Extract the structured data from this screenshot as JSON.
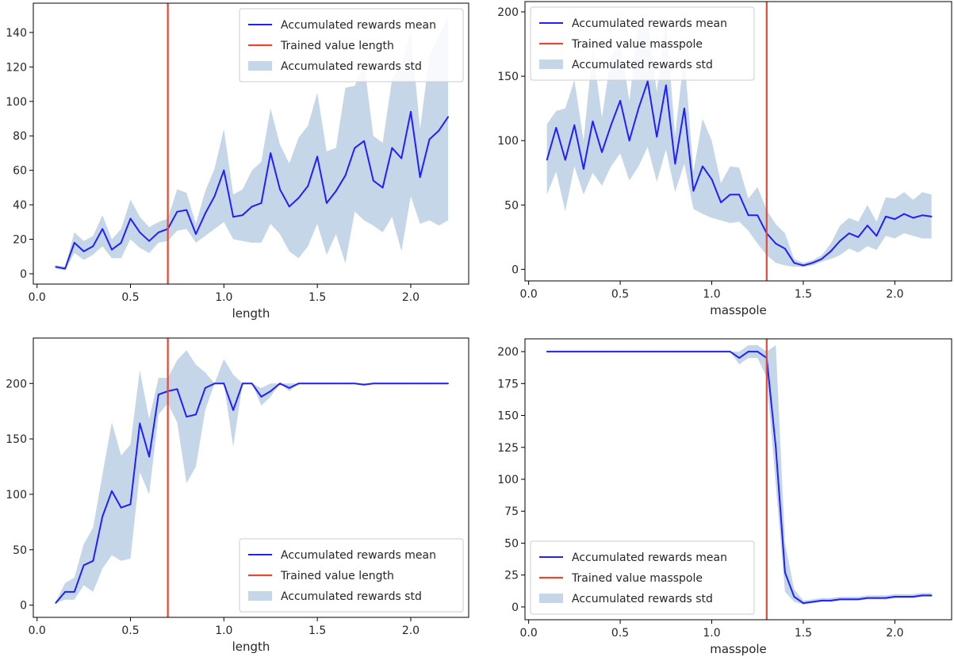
{
  "chart_data": [
    {
      "type": "line",
      "xlabel": "length",
      "ylabel": "",
      "xlim": [
        -0.02,
        2.31
      ],
      "ylim": [
        -6,
        157
      ],
      "xticks": [
        0.0,
        0.5,
        1.0,
        1.5,
        2.0
      ],
      "xtick_labels": [
        "0.0",
        "0.5",
        "1.0",
        "1.5",
        "2.0"
      ],
      "yticks": [
        0,
        20,
        40,
        60,
        80,
        100,
        120,
        140
      ],
      "ytick_labels": [
        "0",
        "20",
        "40",
        "60",
        "80",
        "100",
        "120",
        "140"
      ],
      "x": [
        0.1,
        0.15,
        0.2,
        0.25,
        0.3,
        0.35,
        0.4,
        0.45,
        0.5,
        0.55,
        0.6,
        0.65,
        0.7,
        0.75,
        0.8,
        0.85,
        0.9,
        0.95,
        1.0,
        1.05,
        1.1,
        1.15,
        1.2,
        1.25,
        1.3,
        1.35,
        1.4,
        1.45,
        1.5,
        1.55,
        1.6,
        1.65,
        1.7,
        1.75,
        1.8,
        1.85,
        1.9,
        1.95,
        2.0,
        2.05,
        2.1,
        2.15,
        2.2
      ],
      "series": [
        {
          "name": "Accumulated rewards mean",
          "color": "#1f1fff",
          "values": [
            4,
            3,
            18,
            13,
            16,
            26,
            14,
            18,
            32,
            24,
            19,
            24,
            26,
            36,
            37,
            23,
            35,
            45,
            60,
            33,
            34,
            39,
            41,
            70,
            49,
            39,
            44,
            51,
            68,
            41,
            48,
            57,
            73,
            77,
            54,
            50,
            73,
            67,
            94,
            56,
            78,
            83,
            91
          ]
        },
        {
          "name": "Accumulated rewards std",
          "color": "#c6d6e9",
          "kind": "band",
          "lower": [
            3,
            2,
            12,
            8,
            11,
            16,
            9,
            9,
            20,
            15,
            12,
            18,
            19,
            25,
            26,
            18,
            22,
            26,
            30,
            20,
            19,
            18,
            18,
            29,
            23,
            13,
            9,
            16,
            29,
            11,
            23,
            6,
            36,
            31,
            28,
            24,
            33,
            13,
            45,
            29,
            31,
            28,
            31
          ]
        },
        {
          "name": "",
          "color": "#c6d6e9",
          "kind": "band-upper",
          "upper": [
            5,
            4,
            24,
            19,
            22,
            34,
            20,
            26,
            43,
            33,
            27,
            30,
            32,
            49,
            47,
            29,
            48,
            61,
            84,
            46,
            49,
            60,
            65,
            96,
            75,
            64,
            79,
            86,
            105,
            71,
            73,
            108,
            109,
            122,
            80,
            76,
            113,
            121,
            141,
            84,
            126,
            138,
            149
          ]
        }
      ],
      "vline": {
        "name": "Trained value length",
        "x": 0.7,
        "color": "#e24a33"
      },
      "legend": {
        "placement": "top-right",
        "entries": [
          "Accumulated rewards mean",
          "Trained value length",
          "Accumulated rewards std"
        ]
      },
      "grid": false
    },
    {
      "type": "line",
      "xlabel": "masspole",
      "ylabel": "",
      "xlim": [
        -0.02,
        2.31
      ],
      "ylim": [
        -9,
        208
      ],
      "xticks": [
        0.0,
        0.5,
        1.0,
        1.5,
        2.0
      ],
      "xtick_labels": [
        "0.0",
        "0.5",
        "1.0",
        "1.5",
        "2.0"
      ],
      "yticks": [
        0,
        50,
        100,
        150,
        200
      ],
      "ytick_labels": [
        "0",
        "50",
        "100",
        "150",
        "200"
      ],
      "x": [
        0.1,
        0.15,
        0.2,
        0.25,
        0.3,
        0.35,
        0.4,
        0.45,
        0.5,
        0.55,
        0.6,
        0.65,
        0.7,
        0.75,
        0.8,
        0.85,
        0.9,
        0.95,
        1.0,
        1.05,
        1.1,
        1.15,
        1.2,
        1.25,
        1.3,
        1.35,
        1.4,
        1.45,
        1.5,
        1.55,
        1.6,
        1.65,
        1.7,
        1.75,
        1.8,
        1.85,
        1.9,
        1.95,
        2.0,
        2.05,
        2.1,
        2.15,
        2.2
      ],
      "series": [
        {
          "name": "Accumulated rewards mean",
          "color": "#1f1fff",
          "values": [
            85,
            110,
            85,
            112,
            78,
            115,
            91,
            112,
            131,
            100,
            125,
            146,
            103,
            143,
            82,
            125,
            61,
            80,
            70,
            52,
            58,
            58,
            42,
            42,
            28,
            20,
            16,
            5,
            3,
            5,
            8,
            14,
            22,
            28,
            25,
            34,
            26,
            41,
            39,
            43,
            40,
            42,
            41
          ]
        },
        {
          "name": "Accumulated rewards std",
          "color": "#c6d6e9",
          "kind": "band",
          "lower": [
            58,
            76,
            45,
            80,
            58,
            75,
            65,
            80,
            90,
            69,
            80,
            95,
            68,
            93,
            60,
            82,
            47,
            43,
            40,
            38,
            36,
            37,
            30,
            20,
            11,
            5,
            3,
            2,
            2,
            3,
            6,
            8,
            11,
            16,
            13,
            18,
            15,
            26,
            24,
            28,
            26,
            24,
            24
          ]
        },
        {
          "name": "",
          "color": "#c6d6e9",
          "kind": "band-upper",
          "upper": [
            113,
            123,
            125,
            147,
            100,
            172,
            118,
            165,
            176,
            131,
            191,
            193,
            138,
            194,
            104,
            167,
            76,
            117,
            100,
            67,
            80,
            79,
            55,
            64,
            46,
            35,
            28,
            8,
            5,
            7,
            11,
            20,
            34,
            40,
            37,
            50,
            37,
            56,
            55,
            60,
            54,
            60,
            58
          ]
        }
      ],
      "vline": {
        "name": "Trained value masspole",
        "x": 1.3,
        "color": "#e24a33"
      },
      "legend": {
        "placement": "top-left",
        "entries": [
          "Accumulated rewards mean",
          "Trained value masspole",
          "Accumulated rewards std"
        ]
      },
      "grid": false
    },
    {
      "type": "line",
      "xlabel": "length",
      "ylabel": "",
      "xlim": [
        -0.02,
        2.31
      ],
      "ylim": [
        -11,
        241
      ],
      "xticks": [
        0.0,
        0.5,
        1.0,
        1.5,
        2.0
      ],
      "xtick_labels": [
        "0.0",
        "0.5",
        "1.0",
        "1.5",
        "2.0"
      ],
      "yticks": [
        0,
        50,
        100,
        150,
        200
      ],
      "ytick_labels": [
        "0",
        "50",
        "100",
        "150",
        "200"
      ],
      "x": [
        0.1,
        0.15,
        0.2,
        0.25,
        0.3,
        0.35,
        0.4,
        0.45,
        0.5,
        0.55,
        0.6,
        0.65,
        0.7,
        0.75,
        0.8,
        0.85,
        0.9,
        0.95,
        1.0,
        1.05,
        1.1,
        1.15,
        1.2,
        1.25,
        1.3,
        1.35,
        1.4,
        1.45,
        1.5,
        1.55,
        1.6,
        1.65,
        1.7,
        1.75,
        1.8,
        1.85,
        1.9,
        1.95,
        2.0,
        2.05,
        2.1,
        2.15,
        2.2
      ],
      "series": [
        {
          "name": "Accumulated rewards mean",
          "color": "#1f1fff",
          "values": [
            2,
            12,
            12,
            36,
            40,
            80,
            103,
            88,
            91,
            164,
            134,
            190,
            193,
            195,
            170,
            172,
            196,
            200,
            200,
            176,
            200,
            200,
            188,
            193,
            200,
            196,
            200,
            200,
            200,
            200,
            200,
            200,
            200,
            199,
            200,
            200,
            200,
            200,
            200,
            200,
            200,
            200,
            200
          ]
        },
        {
          "name": "Accumulated rewards std",
          "color": "#c6d6e9",
          "kind": "band",
          "lower": [
            2,
            5,
            5,
            18,
            12,
            33,
            45,
            40,
            42,
            120,
            100,
            172,
            182,
            165,
            110,
            125,
            176,
            200,
            200,
            143,
            200,
            200,
            180,
            188,
            200,
            193,
            200,
            200,
            200,
            200,
            200,
            200,
            200,
            198,
            200,
            200,
            200,
            200,
            200,
            200,
            200,
            200,
            200
          ]
        },
        {
          "name": "",
          "color": "#c6d6e9",
          "kind": "band-upper",
          "upper": [
            3,
            20,
            25,
            55,
            70,
            118,
            165,
            135,
            145,
            212,
            168,
            205,
            205,
            221,
            230,
            217,
            210,
            200,
            222,
            208,
            200,
            200,
            196,
            200,
            200,
            200,
            200,
            200,
            200,
            200,
            200,
            200,
            200,
            200,
            200,
            200,
            200,
            200,
            200,
            200,
            200,
            200,
            200
          ]
        }
      ],
      "vline": {
        "name": "Trained value length",
        "x": 0.7,
        "color": "#e24a33"
      },
      "legend": {
        "placement": "bottom-right",
        "entries": [
          "Accumulated rewards mean",
          "Trained value length",
          "Accumulated rewards std"
        ]
      },
      "grid": false
    },
    {
      "type": "line",
      "xlabel": "masspole",
      "ylabel": "",
      "xlim": [
        -0.02,
        2.31
      ],
      "ylim": [
        -10,
        210
      ],
      "xticks": [
        0.0,
        0.5,
        1.0,
        1.5,
        2.0
      ],
      "xtick_labels": [
        "0.0",
        "0.5",
        "1.0",
        "1.5",
        "2.0"
      ],
      "yticks": [
        0,
        25,
        50,
        75,
        100,
        125,
        150,
        175,
        200
      ],
      "ytick_labels": [
        "0",
        "25",
        "50",
        "75",
        "100",
        "125",
        "150",
        "175",
        "200"
      ],
      "x": [
        0.1,
        0.15,
        0.2,
        0.25,
        0.3,
        0.35,
        0.4,
        0.45,
        0.5,
        0.55,
        0.6,
        0.65,
        0.7,
        0.75,
        0.8,
        0.85,
        0.9,
        0.95,
        1.0,
        1.05,
        1.1,
        1.15,
        1.2,
        1.25,
        1.3,
        1.35,
        1.4,
        1.45,
        1.5,
        1.55,
        1.6,
        1.65,
        1.7,
        1.75,
        1.8,
        1.85,
        1.9,
        1.95,
        2.0,
        2.05,
        2.1,
        2.15,
        2.2
      ],
      "series": [
        {
          "name": "Accumulated rewards mean",
          "color": "#1f1fff",
          "values": [
            200,
            200,
            200,
            200,
            200,
            200,
            200,
            200,
            200,
            200,
            200,
            200,
            200,
            200,
            200,
            200,
            200,
            200,
            200,
            200,
            200,
            195,
            200,
            200,
            195,
            125,
            27,
            8,
            3,
            4,
            5,
            5,
            6,
            6,
            6,
            7,
            7,
            7,
            8,
            8,
            8,
            9,
            9
          ]
        },
        {
          "name": "Accumulated rewards std",
          "color": "#c6d6e9",
          "kind": "band",
          "lower": [
            200,
            200,
            200,
            200,
            200,
            200,
            200,
            200,
            200,
            200,
            200,
            200,
            200,
            200,
            200,
            200,
            200,
            200,
            200,
            200,
            200,
            190,
            195,
            195,
            180,
            95,
            12,
            4,
            2,
            3,
            4,
            4,
            5,
            5,
            5,
            6,
            6,
            6,
            7,
            7,
            7,
            8,
            8
          ]
        },
        {
          "name": "",
          "color": "#c6d6e9",
          "kind": "band-upper",
          "upper": [
            200,
            200,
            200,
            200,
            200,
            200,
            200,
            200,
            200,
            200,
            200,
            200,
            200,
            200,
            200,
            200,
            200,
            200,
            200,
            200,
            200,
            200,
            205,
            205,
            200,
            205,
            50,
            14,
            5,
            6,
            7,
            7,
            8,
            8,
            8,
            9,
            9,
            9,
            10,
            10,
            10,
            11,
            11
          ]
        }
      ],
      "vline": {
        "name": "Trained value masspole",
        "x": 1.3,
        "color": "#e24a33"
      },
      "legend": {
        "placement": "bottom-left",
        "entries": [
          "Accumulated rewards mean",
          "Trained value masspole",
          "Accumulated rewards std"
        ]
      },
      "grid": false
    }
  ]
}
